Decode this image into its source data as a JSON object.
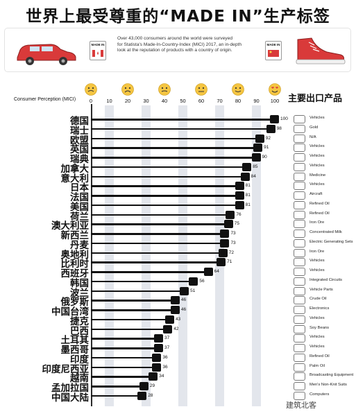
{
  "header": {
    "title": "世界上最受尊重的“MADE IN”生产标签",
    "intro_lines": [
      "Over 43,000 consumers around the world were surveyed",
      "for Statista's Made-In-Country-Index (MICI) 2017, an in-depth",
      "look at the reputation of products with a country of origin."
    ],
    "made_in_text": "MADE IN"
  },
  "axis": {
    "title": "Consumer Perception (MICI)",
    "ticks": [
      "0",
      "10",
      "20",
      "30",
      "40",
      "50",
      "60",
      "70",
      "80",
      "90",
      "100"
    ]
  },
  "export_heading": "主要出口产品",
  "watermark": "建筑北客",
  "colors": {
    "bar": "#111111",
    "band": "#e3e6ec",
    "accent_red": "#d93a3a"
  },
  "chart_data": {
    "type": "bar",
    "orientation": "horizontal",
    "xlim": [
      0,
      100
    ],
    "xlabel": "Consumer Perception (MICI)",
    "categories": [
      "德国",
      "瑞士",
      "欧盟",
      "英国",
      "瑞典",
      "加拿大",
      "意大利",
      "日本",
      "法国",
      "美国",
      "荷兰",
      "澳大利亚",
      "新西兰",
      "丹麦",
      "奥地利",
      "比利时",
      "西班牙",
      "韩国",
      "波兰",
      "俄罗斯",
      "中国台湾",
      "捷克",
      "巴西",
      "土耳其",
      "墨西哥",
      "印度",
      "印度尼西亚",
      "越南",
      "孟加拉国",
      "中国大陆"
    ],
    "values": [
      100,
      98,
      92,
      91,
      90,
      85,
      84,
      81,
      81,
      81,
      76,
      75,
      73,
      73,
      72,
      71,
      64,
      56,
      51,
      46,
      46,
      43,
      42,
      37,
      37,
      36,
      36,
      34,
      29,
      28
    ],
    "products": [
      "Vehicles",
      "Gold",
      "N/A",
      "Vehicles",
      "Vehicles",
      "Vehicles",
      "Medicine",
      "Vehicles",
      "Aircraft",
      "Refined Oil",
      "Refined Oil",
      "Iron Ore",
      "Concentrated Milk",
      "Electric Generating Sets",
      "Iron Ore",
      "Vehicles",
      "Vehicles",
      "Integrated Circuits",
      "Vehicle Parts",
      "Crude Oil",
      "Electronics",
      "Vehicles",
      "Soy Beans",
      "Vehicles",
      "Vehicles",
      "Refined Oil",
      "Palm Oil",
      "Broadcasting Equipment",
      "Men's Non-Knit Suits",
      "Computers"
    ]
  }
}
